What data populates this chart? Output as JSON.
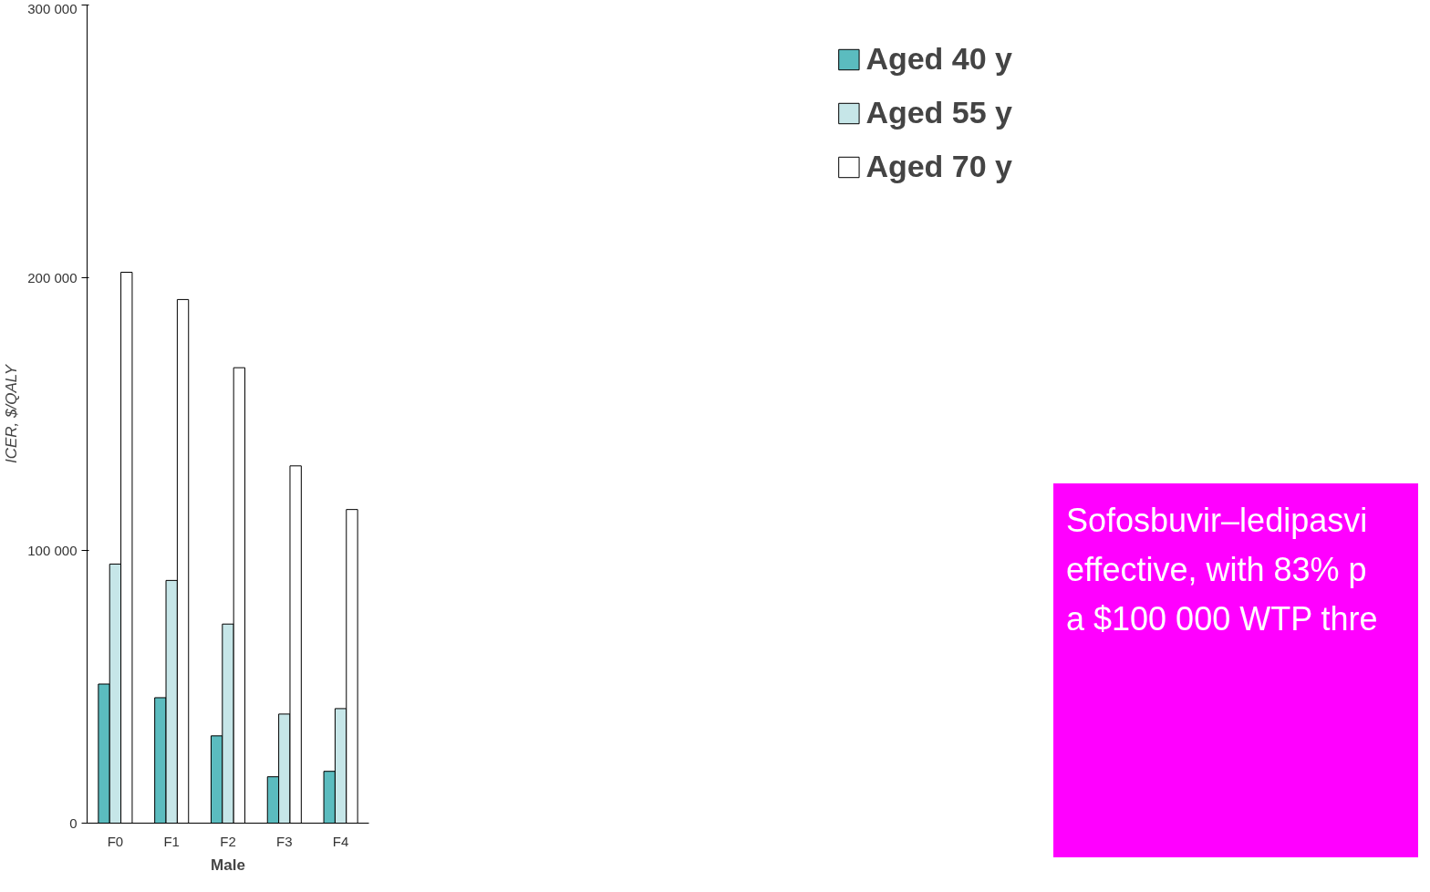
{
  "chart_data": {
    "type": "bar",
    "ylabel": "ICER, $/QALY",
    "xlabel": "Male",
    "categories": [
      "F0",
      "F1",
      "F2",
      "F3",
      "F4"
    ],
    "series": [
      {
        "name": "Aged 40 y",
        "color": "#5bbcbf",
        "values": [
          51000,
          46000,
          32000,
          17000,
          19000
        ]
      },
      {
        "name": "Aged 55 y",
        "color": "#c6e6e8",
        "values": [
          95000,
          89000,
          73000,
          40000,
          42000
        ]
      },
      {
        "name": "Aged 70 y",
        "color": "#ffffff",
        "values": [
          202000,
          192000,
          167000,
          131000,
          115000
        ]
      }
    ],
    "ylim": [
      0,
      300000
    ],
    "yticks": [
      {
        "value": 0,
        "label": "0"
      },
      {
        "value": 100000,
        "label": "100 000"
      },
      {
        "value": 200000,
        "label": "200 000"
      },
      {
        "value": 300000,
        "label": "300 000"
      }
    ],
    "grid": false,
    "legend": "right",
    "annotations": [
      "Sofosbuvir–ledipasvi\neffective, with 83% p\na $100 000 WTP thre"
    ]
  }
}
